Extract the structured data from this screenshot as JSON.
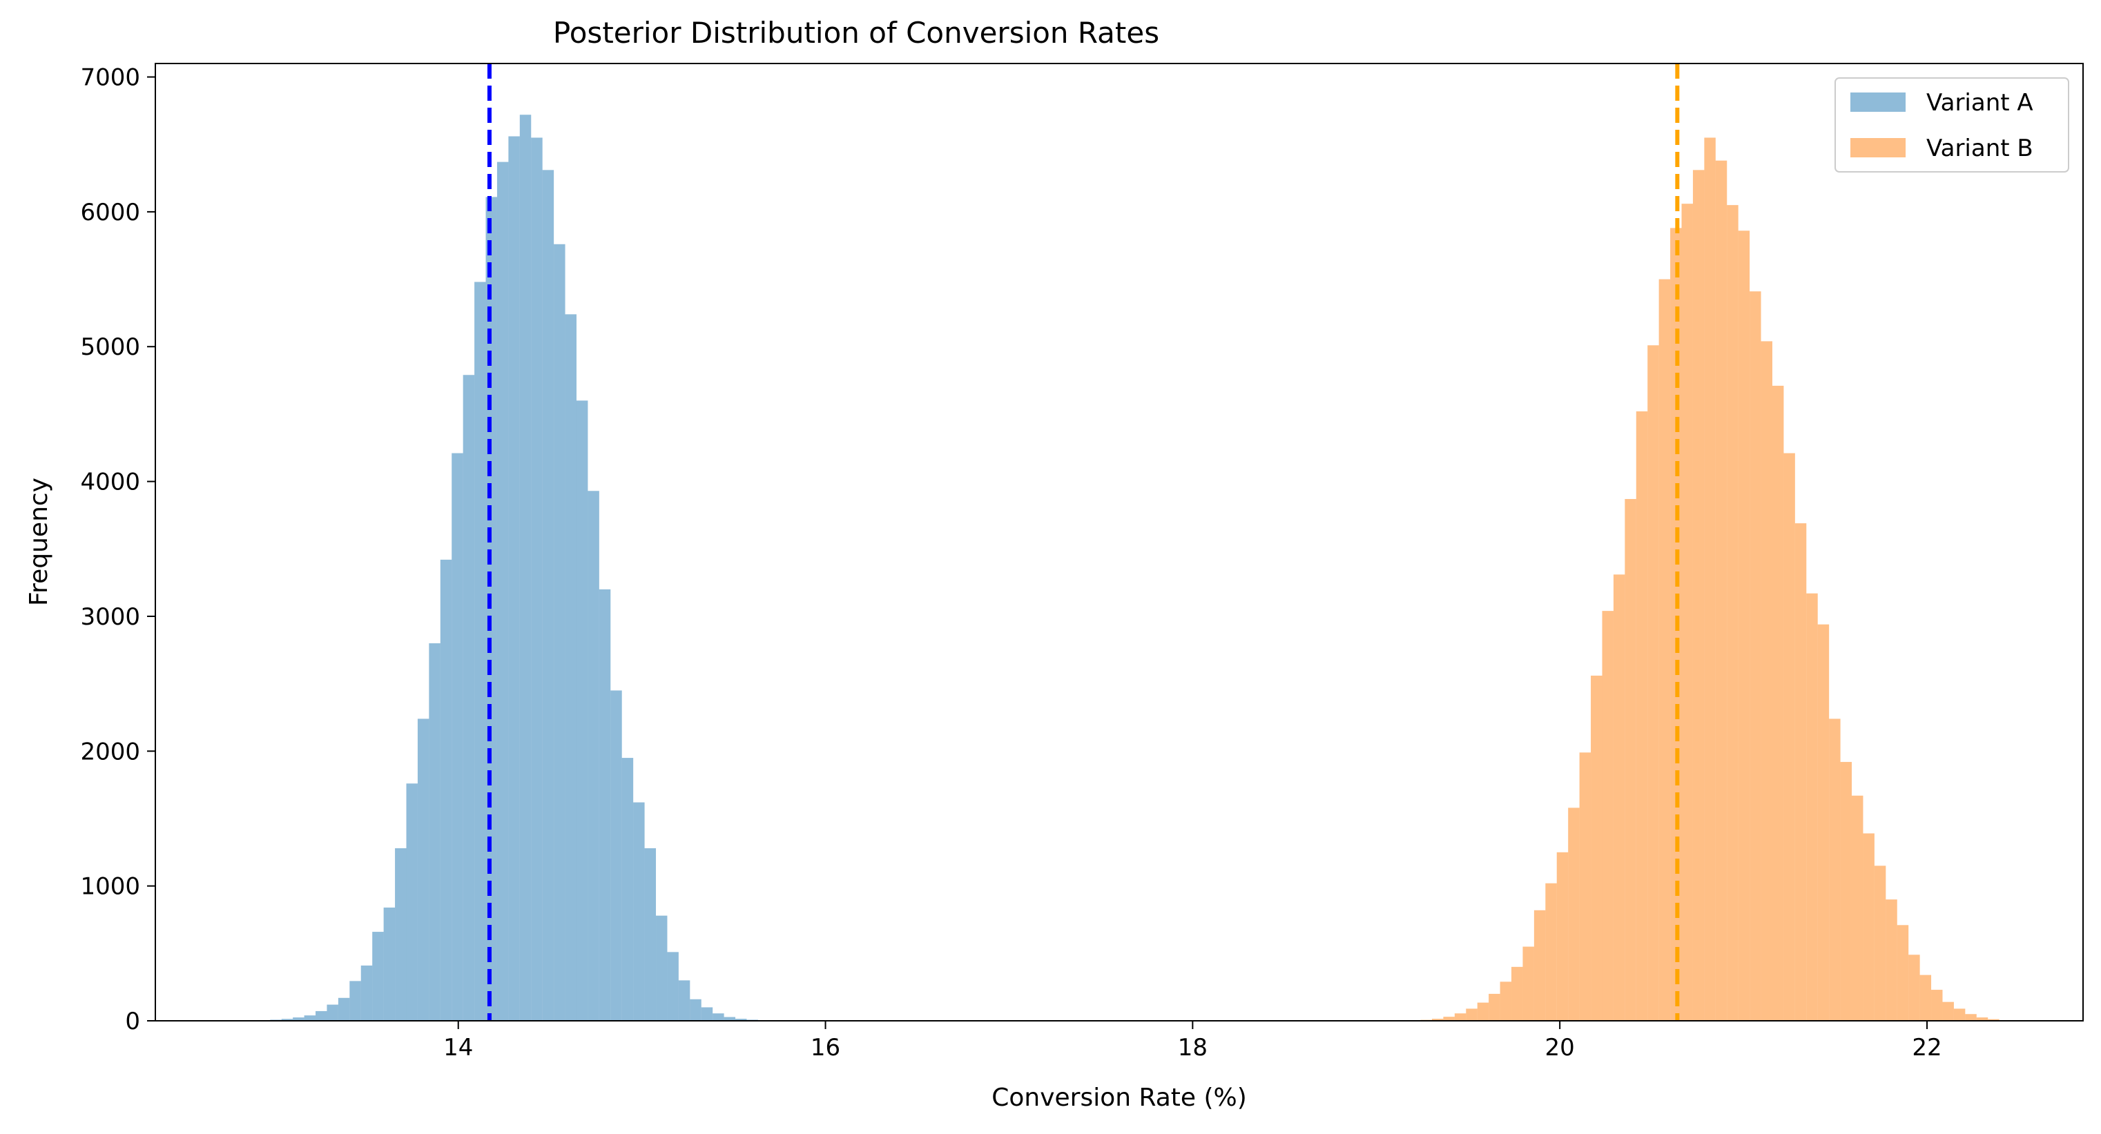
{
  "chart_data": {
    "type": "histogram",
    "title": "Posterior Distribution of Conversion Rates",
    "xlabel": "Conversion Rate (%)",
    "ylabel": "Frequency",
    "xlim": [
      12.35,
      22.85
    ],
    "ylim": [
      0,
      7100
    ],
    "xticks": [
      14,
      16,
      18,
      20,
      22
    ],
    "yticks": [
      0,
      1000,
      2000,
      3000,
      4000,
      5000,
      6000,
      7000
    ],
    "grid": false,
    "legend_position": "top-right",
    "series": [
      {
        "name": "Variant A",
        "color": "#1f77b4",
        "opacity": 0.5,
        "bin_start": 12.79,
        "bin_width": 0.0618,
        "counts": [
          2,
          3,
          5,
          8,
          14,
          25,
          40,
          72,
          120,
          170,
          295,
          410,
          660,
          840,
          1280,
          1760,
          2240,
          2800,
          3420,
          4210,
          4790,
          5480,
          6110,
          6370,
          6560,
          6720,
          6550,
          6310,
          5760,
          5240,
          4600,
          3930,
          3200,
          2450,
          1950,
          1620,
          1280,
          780,
          510,
          300,
          160,
          100,
          55,
          28,
          15,
          8,
          4,
          2,
          1
        ]
      },
      {
        "name": "Variant B",
        "color": "#ff7f0e",
        "opacity": 0.5,
        "bin_start": 19.18,
        "bin_width": 0.0618,
        "counts": [
          3,
          7,
          15,
          30,
          55,
          90,
          135,
          200,
          290,
          400,
          550,
          820,
          1020,
          1250,
          1580,
          1990,
          2560,
          3040,
          3310,
          3870,
          4520,
          5010,
          5500,
          5880,
          6060,
          6310,
          6550,
          6380,
          6050,
          5860,
          5410,
          5040,
          4710,
          4210,
          3690,
          3170,
          2940,
          2240,
          1920,
          1670,
          1390,
          1150,
          900,
          710,
          490,
          340,
          230,
          140,
          90,
          50,
          25,
          12,
          5,
          2
        ]
      }
    ],
    "reference_lines": [
      {
        "series": "Variant A",
        "x": 14.17,
        "color": "#0000ff",
        "style": "dashed"
      },
      {
        "series": "Variant B",
        "x": 20.64,
        "color": "#ffa500",
        "style": "dashed"
      }
    ]
  }
}
